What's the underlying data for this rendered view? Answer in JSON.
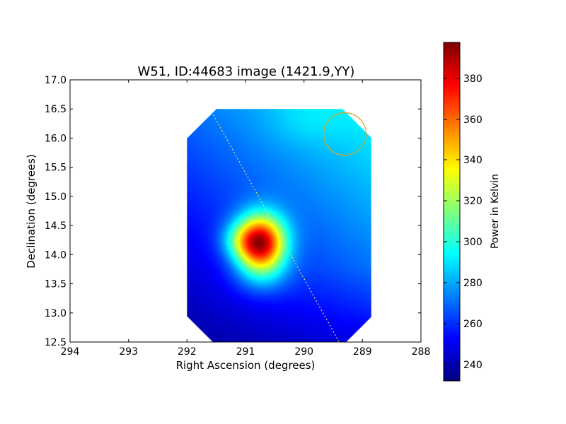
{
  "chart_data": {
    "type": "heatmap",
    "title": "W51, ID:44683 image (1421.9,YY)",
    "xlabel": "Right Ascension (degrees)",
    "ylabel": "Declination (degrees)",
    "xlim": [
      294,
      288
    ],
    "ylim": [
      12.5,
      17.0
    ],
    "x_ticks": [
      "294",
      "293",
      "292",
      "291",
      "290",
      "289",
      "288"
    ],
    "y_ticks": [
      "12.5",
      "13.0",
      "13.5",
      "14.0",
      "14.5",
      "15.0",
      "15.5",
      "16.0",
      "16.5",
      "17.0"
    ],
    "colorbar": {
      "label": "Power in Kelvin",
      "range": [
        232,
        398
      ],
      "ticks": [
        "240",
        "260",
        "280",
        "300",
        "320",
        "340",
        "360",
        "380"
      ],
      "colormap": "jet"
    },
    "image_extent": {
      "ra": [
        292.0,
        288.85
      ],
      "dec": [
        12.5,
        16.5
      ]
    },
    "peak": {
      "ra": 290.75,
      "dec": 14.2,
      "value": 397
    },
    "beam": {
      "ra": 289.3,
      "dec": 16.07,
      "color": "#ccaa33"
    },
    "scan_track": {
      "from": [
        291.55,
        16.4
      ],
      "to": [
        289.4,
        12.5
      ],
      "color": "#e8e070"
    }
  }
}
